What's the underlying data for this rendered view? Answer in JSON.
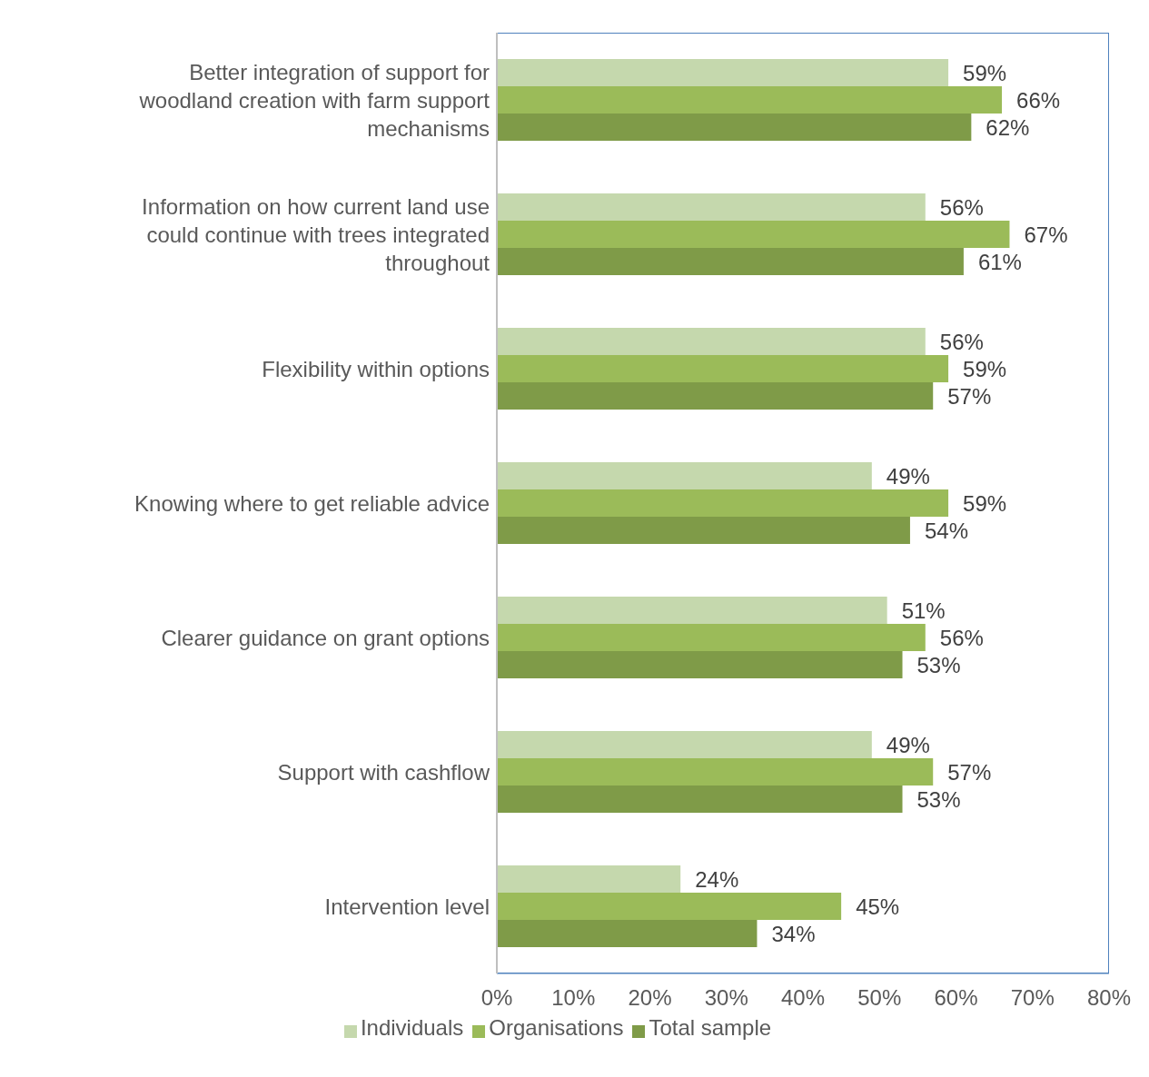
{
  "chart_data": {
    "type": "bar",
    "orientation": "horizontal",
    "categories": [
      "Better integration of support for woodland creation with farm support mechanisms",
      "Information on how current land use could continue with trees integrated throughout",
      "Flexibility within options",
      "Knowing where to get reliable advice",
      "Clearer guidance on grant options",
      "Support with cashflow",
      "Intervention level"
    ],
    "series": [
      {
        "name": "Individuals",
        "color": "#c5d8ad",
        "values": [
          59,
          56,
          56,
          49,
          51,
          49,
          24
        ],
        "value_labels": [
          "59%",
          "56%",
          "56%",
          "49%",
          "51%",
          "49%",
          "24%"
        ]
      },
      {
        "name": "Organisations",
        "color": "#9bbb59",
        "values": [
          66,
          67,
          59,
          59,
          56,
          57,
          45
        ],
        "value_labels": [
          "66%",
          "67%",
          "59%",
          "59%",
          "56%",
          "57%",
          "45%"
        ]
      },
      {
        "name": "Total sample",
        "color": "#7f9b48",
        "values": [
          62,
          61,
          57,
          54,
          53,
          53,
          34
        ],
        "value_labels": [
          "62%",
          "61%",
          "57%",
          "54%",
          "53%",
          "53%",
          "34%"
        ]
      }
    ],
    "xlim": [
      0,
      80
    ],
    "xticks": [
      {
        "value": 0,
        "label": "0%"
      },
      {
        "value": 10,
        "label": "10%"
      },
      {
        "value": 20,
        "label": "20%"
      },
      {
        "value": 30,
        "label": "30%"
      },
      {
        "value": 40,
        "label": "40%"
      },
      {
        "value": 50,
        "label": "50%"
      },
      {
        "value": 60,
        "label": "60%"
      },
      {
        "value": 70,
        "label": "70%"
      },
      {
        "value": 80,
        "label": "80%"
      }
    ],
    "grid": false,
    "legend": "bottom"
  }
}
